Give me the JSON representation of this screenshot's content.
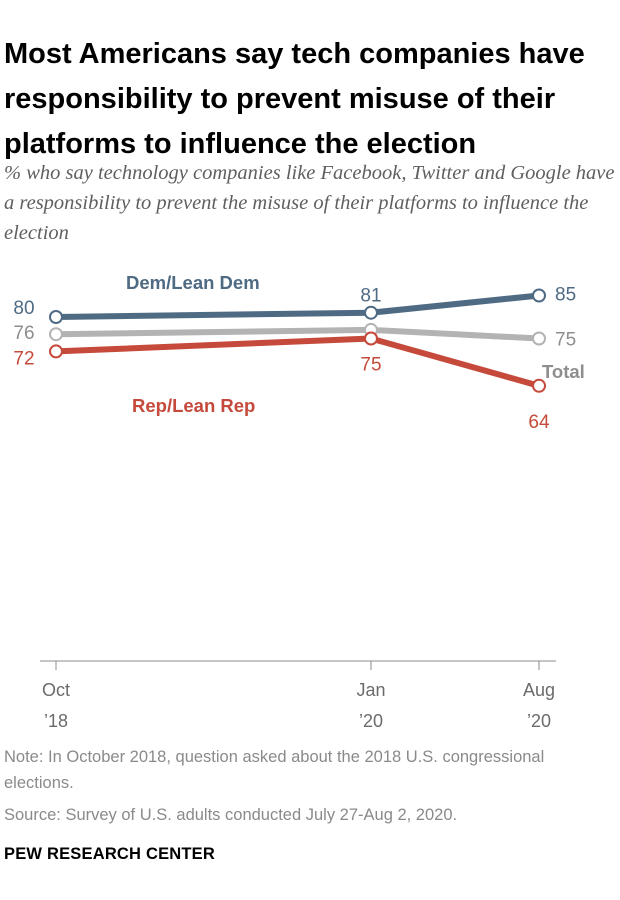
{
  "title": "Most Americans say tech companies have responsibility to prevent misuse of their platforms to influence the election",
  "subtitle": "% who say technology companies like Facebook, Twitter and Google have a responsibility to prevent the misuse of their platforms to influence the election",
  "note": "Note: In October 2018, question asked about the 2018 U.S. congressional elections.",
  "source": "Source: Survey of U.S. adults conducted July 27-Aug 2, 2020.",
  "organization": "PEW RESEARCH CENTER",
  "chart_data": {
    "type": "line",
    "x": [
      "2018-10",
      "2020-01",
      "2020-08"
    ],
    "x_tick_labels": [
      {
        "month": "Oct",
        "year": "’18"
      },
      {
        "month": "Jan",
        "year": "’20"
      },
      {
        "month": "Aug",
        "year": "’20"
      }
    ],
    "ylim": [
      0,
      100
    ],
    "grid": false,
    "series": [
      {
        "name": "Dem/Lean Dem",
        "color": "#4f6b84",
        "values": [
          80,
          81,
          85
        ]
      },
      {
        "name": "Total",
        "color": "#b3b3b3",
        "label_color": "#8e8e8e",
        "values": [
          76,
          77,
          75
        ]
      },
      {
        "name": "Rep/Lean Rep",
        "color": "#c64a3b",
        "values": [
          72,
          75,
          64
        ]
      }
    ],
    "data_labels": [
      {
        "series": "Dem/Lean Dem",
        "point": 0,
        "text": "80"
      },
      {
        "series": "Dem/Lean Dem",
        "point": 1,
        "text": "81"
      },
      {
        "series": "Dem/Lean Dem",
        "point": 2,
        "text": "85"
      },
      {
        "series": "Total",
        "point": 0,
        "text": "76"
      },
      {
        "series": "Total",
        "point": 2,
        "text": "75"
      },
      {
        "series": "Rep/Lean Rep",
        "point": 0,
        "text": "72"
      },
      {
        "series": "Rep/Lean Rep",
        "point": 1,
        "text": "75"
      },
      {
        "series": "Rep/Lean Rep",
        "point": 2,
        "text": "64"
      }
    ]
  }
}
